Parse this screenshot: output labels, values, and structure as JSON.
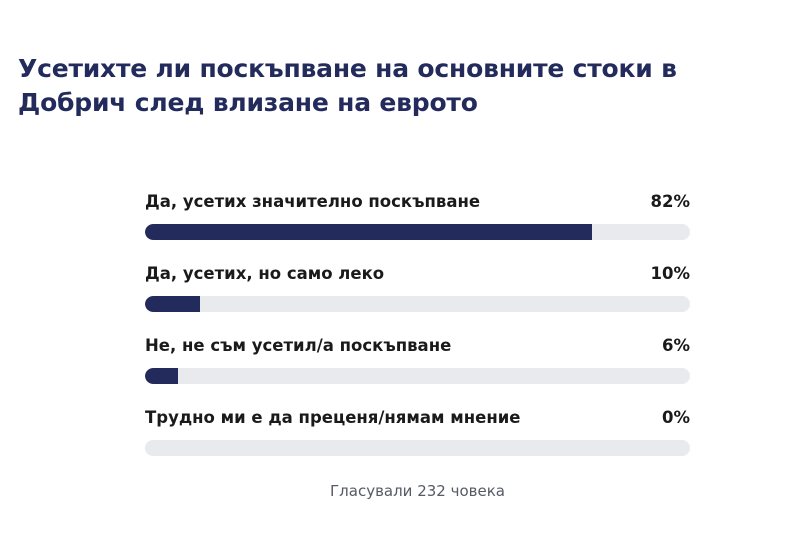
{
  "poll": {
    "title": "Усетихте ли поскъпване на основните стоки в Добрич след влизане на еврото",
    "options": [
      {
        "label": "Да, усетих значително поскъпване",
        "percent_label": "82%",
        "percent": 82
      },
      {
        "label": "Да, усетих, но само леко",
        "percent_label": "10%",
        "percent": 10
      },
      {
        "label": "Не, не съм усетил/а поскъпване",
        "percent_label": "6%",
        "percent": 6
      },
      {
        "label": "Трудно ми е да преценя/нямам мнение",
        "percent_label": "0%",
        "percent": 0
      }
    ],
    "votes_text": "Гласували 232 човека"
  },
  "colors": {
    "accent": "#232a5c",
    "track": "#e8eaee",
    "text": "#1a1a1a",
    "muted": "#555a64"
  }
}
